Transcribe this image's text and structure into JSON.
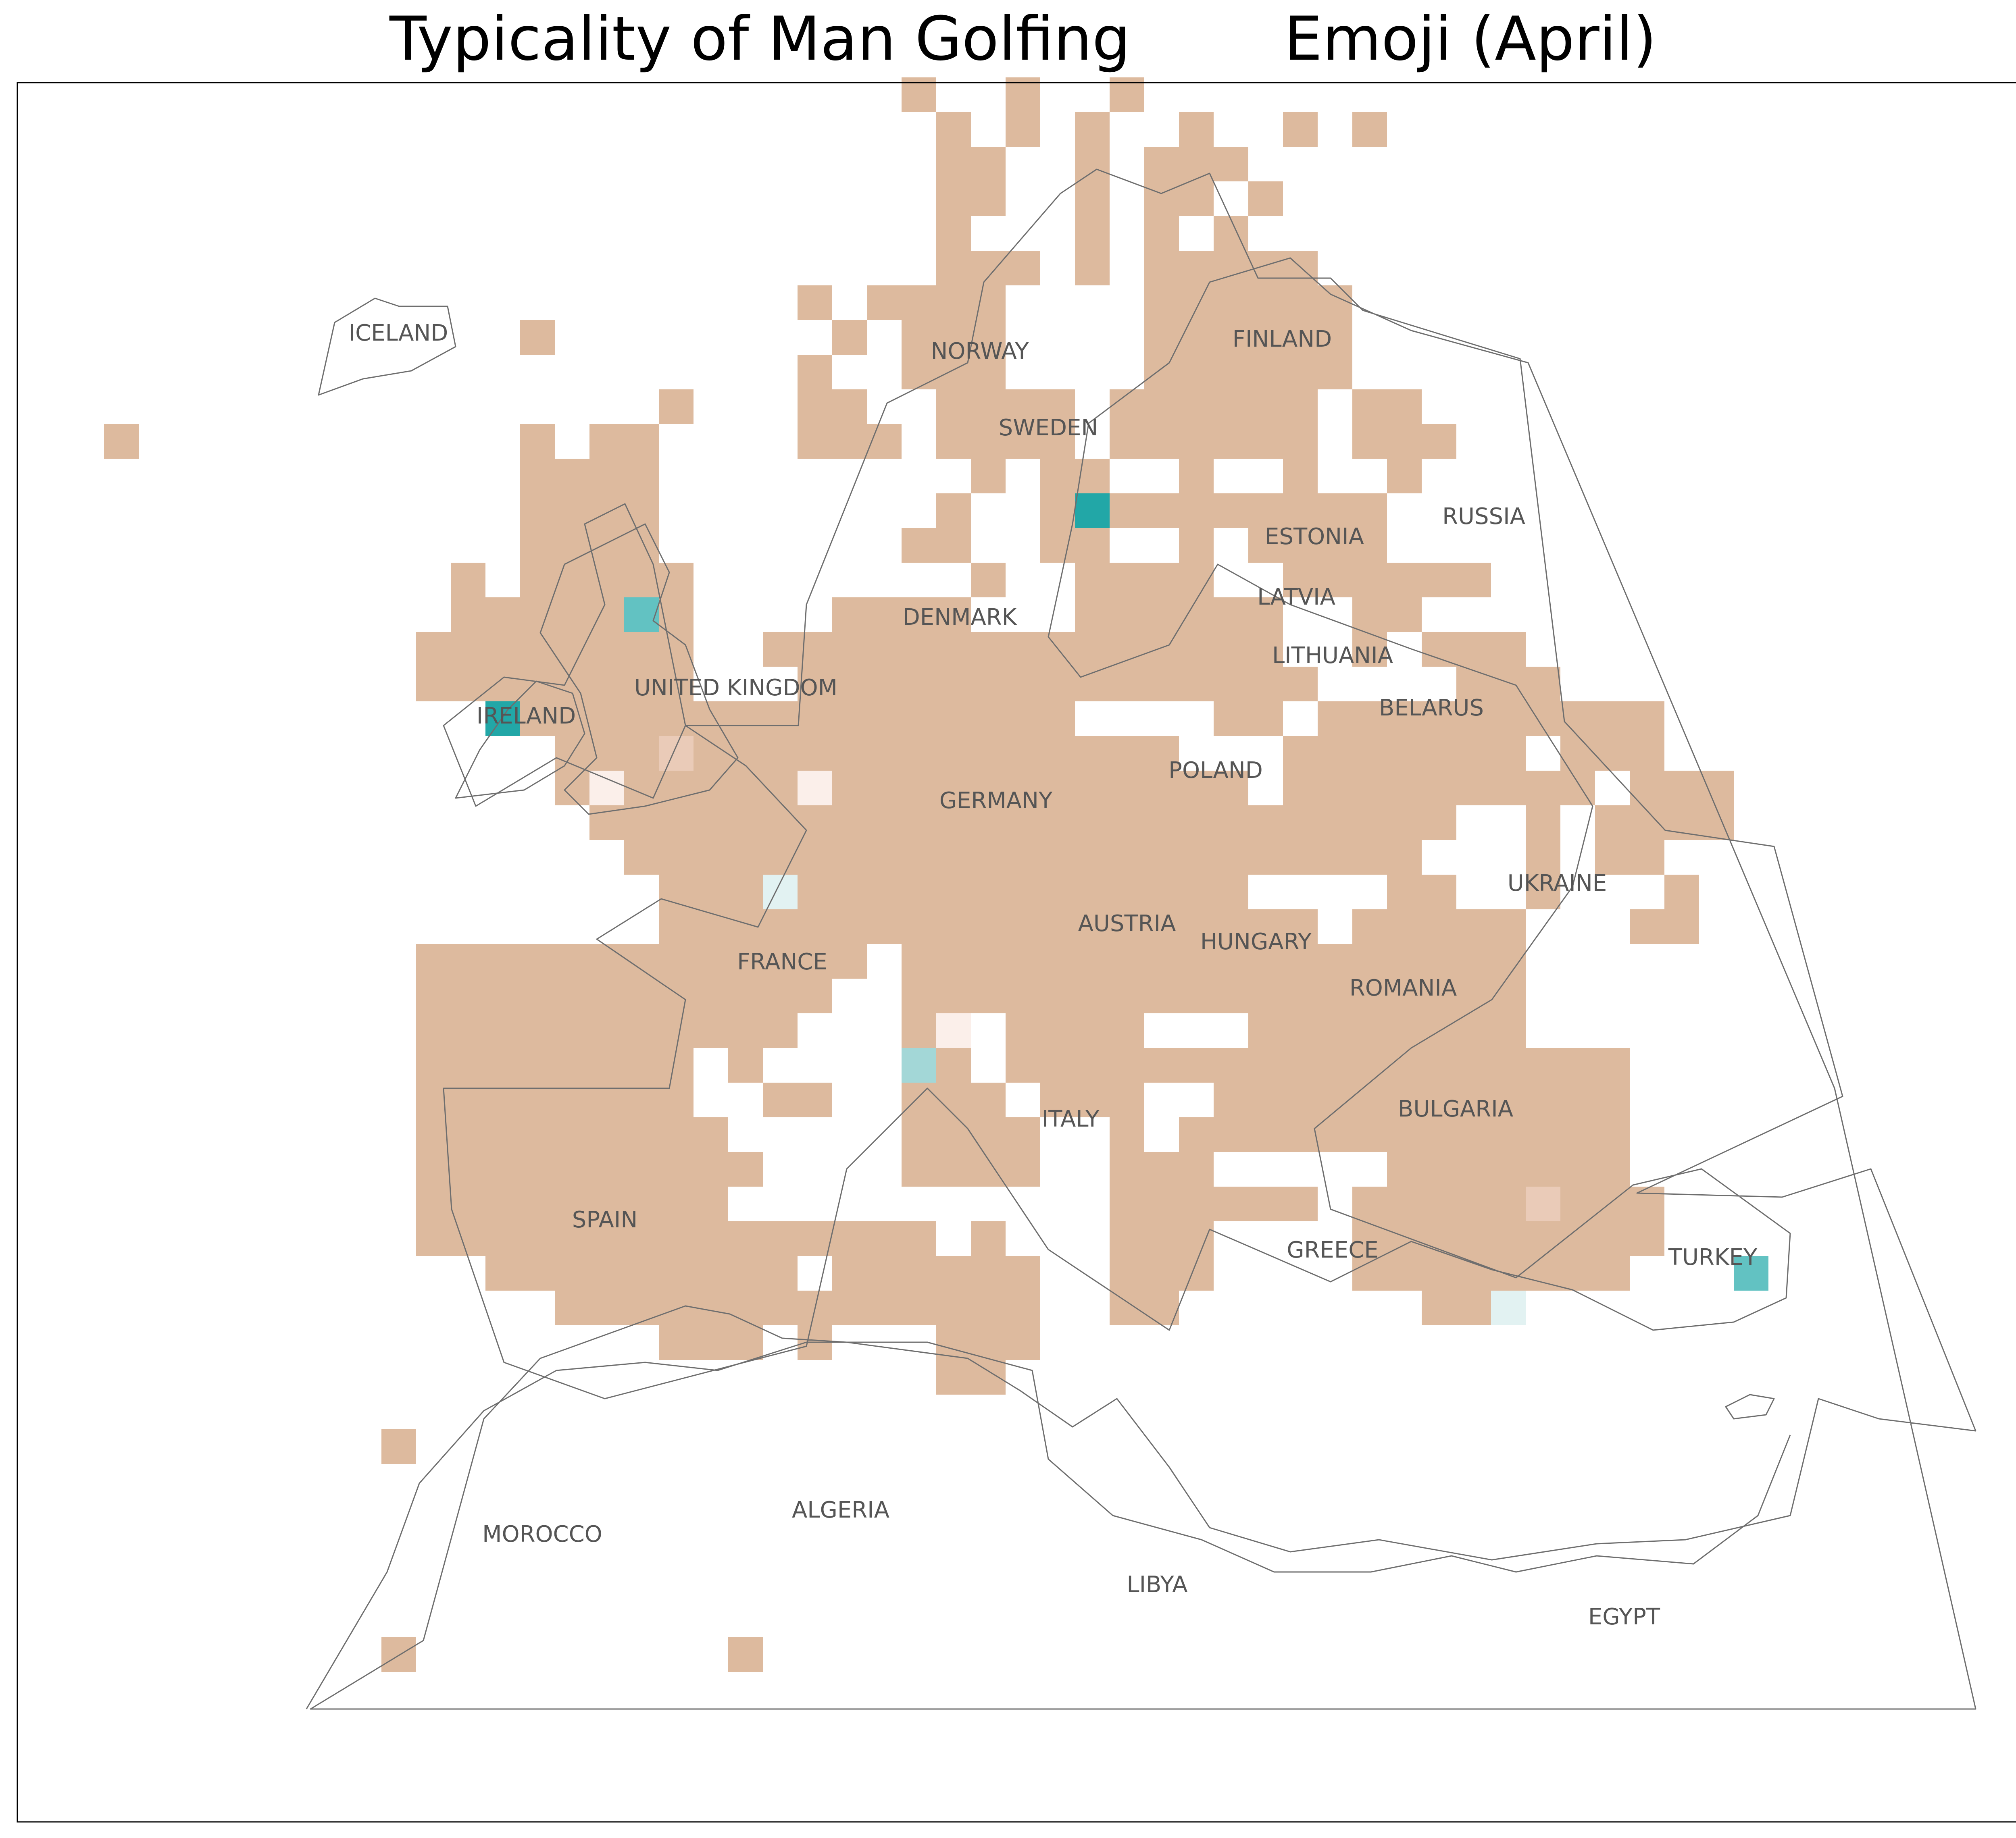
{
  "title": {
    "part1": "Typicality of Man Golfing",
    "part2": "Emoji (April)"
  },
  "colors": {
    "default_cell": "#ddba9e",
    "cell_palette": {
      "teal_dark": "#22a7a7",
      "teal_mid": "#62c2c2",
      "teal_light": "#a3d7d7",
      "teal_pale": "#e2f2f2",
      "rose_pale": "#fbefea",
      "peach_light": "#eacbb8"
    },
    "coastline": "#6e6e6e",
    "label": "#555555",
    "frame": "#000000"
  },
  "country_labels": [
    "ICELAND",
    "NORWAY",
    "FINLAND",
    "SWEDEN",
    "RUSSIA",
    "ESTONIA",
    "LATVIA",
    "DENMARK",
    "LITHUANIA",
    "UNITED KINGDOM",
    "IRELAND",
    "BELARUS",
    "POLAND",
    "GERMANY",
    "UKRAINE",
    "AUSTRIA",
    "HUNGARY",
    "FRANCE",
    "ROMANIA",
    "ITALY",
    "BULGARIA",
    "SPAIN",
    "GREECE",
    "TURKEY",
    "MOROCCO",
    "ALGERIA",
    "LIBYA",
    "EGYPT"
  ],
  "grid_rows": [
    [
      2,
      [
        [
          26,
          26
        ],
        [
          29,
          29
        ],
        [
          32,
          32
        ]
      ]
    ],
    [
      3,
      [
        [
          27,
          27
        ],
        [
          29,
          29
        ],
        [
          31,
          31
        ],
        [
          34,
          34
        ],
        [
          37,
          37
        ]
      ]
    ],
    [
      4,
      [
        [
          27,
          28
        ],
        [
          31,
          31
        ],
        [
          33,
          35
        ]
      ]
    ],
    [
      5,
      [
        [
          27,
          28
        ],
        [
          31,
          31
        ],
        [
          33,
          34
        ],
        [
          36,
          36
        ]
      ]
    ],
    [
      6,
      [
        [
          27,
          27
        ],
        [
          31,
          33
        ],
        [
          35,
          35
        ]
      ]
    ],
    [
      7,
      [
        [
          27,
          29
        ],
        [
          31,
          37
        ]
      ]
    ],
    [
      8,
      [
        [
          23,
          23
        ],
        [
          25,
          28
        ],
        [
          31,
          32
        ],
        [
          33,
          38
        ]
      ]
    ],
    [
      9,
      [
        [
          15,
          15
        ],
        [
          23,
          24
        ],
        [
          26,
          28
        ],
        [
          29,
          31
        ],
        [
          33,
          38
        ]
      ]
    ],
    [
      10,
      [
        [
          23,
          24
        ],
        [
          26,
          28
        ],
        [
          29,
          30
        ],
        [
          33,
          33
        ],
        [
          34,
          38
        ]
      ]
    ],
    [
      11,
      [
        [
          19,
          19
        ],
        [
          23,
          24
        ],
        [
          26,
          28
        ],
        [
          29,
          30
        ],
        [
          32,
          32
        ],
        [
          33,
          37
        ],
        [
          39,
          40
        ]
      ]
    ],
    [
      12,
      [
        [
          15,
          15
        ],
        [
          17,
          18
        ],
        [
          23,
          27
        ],
        [
          28,
          30
        ],
        [
          31,
          31
        ],
        [
          32,
          32
        ],
        [
          33,
          37
        ],
        [
          39,
          40
        ],
        [
          41,
          41
        ]
      ]
    ],
    [
      13,
      [
        [
          15,
          19
        ],
        [
          25,
          25
        ],
        [
          27,
          30
        ],
        [
          31,
          31
        ],
        [
          32,
          32
        ],
        [
          34,
          34
        ],
        [
          37,
          37
        ],
        [
          40,
          40
        ]
      ]
    ],
    [
      14,
      [
        [
          15,
          17
        ],
        [
          18,
          18
        ],
        [
          19,
          19
        ],
        [
          26,
          31
        ],
        [
          34,
          34
        ],
        [
          35,
          37
        ]
      ]
    ],
    [
      15,
      [
        [
          15,
          19
        ],
        [
          26,
          31
        ],
        [
          34,
          34
        ],
        [
          36,
          39
        ]
      ]
    ],
    [
      16,
      [
        [
          13,
          13
        ],
        [
          15,
          20
        ],
        [
          26,
          34
        ],
        [
          37,
          40
        ],
        [
          41,
          41
        ]
      ]
    ],
    [
      17,
      [
        [
          13,
          13
        ],
        [
          14,
          14
        ],
        [
          15,
          19
        ],
        [
          24,
          30
        ],
        [
          31,
          32
        ],
        [
          33,
          36
        ],
        [
          40,
          40
        ]
      ]
    ],
    [
      18,
      [
        [
          12,
          12
        ],
        [
          13,
          13
        ],
        [
          14,
          14
        ],
        [
          15,
          15
        ],
        [
          16,
          18
        ],
        [
          19,
          19
        ],
        [
          20,
          21
        ],
        [
          22,
          22
        ],
        [
          23,
          30
        ],
        [
          31,
          36
        ],
        [
          39,
          39
        ],
        [
          41,
          43
        ]
      ]
    ],
    [
      19,
      [
        [
          12,
          16
        ],
        [
          17,
          17
        ],
        [
          18,
          22
        ],
        [
          23,
          22
        ],
        [
          23,
          23
        ],
        [
          24,
          37
        ],
        [
          42,
          44
        ]
      ]
    ],
    [
      20,
      [
        [
          15,
          21
        ],
        [
          22,
          36
        ],
        [
          38,
          39
        ],
        [
          40,
          41
        ],
        [
          42,
          43
        ],
        [
          44,
          47
        ]
      ]
    ],
    [
      21,
      [
        [
          16,
          21
        ],
        [
          22,
          22
        ],
        [
          23,
          35
        ],
        [
          37,
          37
        ],
        [
          38,
          38
        ],
        [
          39,
          39
        ],
        [
          40,
          41
        ],
        [
          42,
          43
        ],
        [
          45,
          47
        ]
      ]
    ],
    [
      22,
      [
        [
          16,
          36
        ],
        [
          37,
          42
        ],
        [
          43,
          45
        ],
        [
          47,
          49
        ]
      ]
    ],
    [
      23,
      [
        [
          17,
          41
        ],
        [
          44,
          44
        ],
        [
          46,
          47
        ],
        [
          48,
          49
        ]
      ]
    ],
    [
      24,
      [
        [
          18,
          41
        ],
        [
          44,
          44
        ],
        [
          46,
          47
        ]
      ]
    ],
    [
      25,
      [
        [
          19,
          26
        ],
        [
          27,
          27
        ],
        [
          28,
          32
        ],
        [
          33,
          35
        ],
        [
          36,
          42
        ],
        [
          44,
          44
        ],
        [
          47,
          48
        ]
      ]
    ],
    [
      26,
      [
        [
          19,
          26
        ],
        [
          27,
          27
        ],
        [
          28,
          37
        ],
        [
          39,
          40
        ],
        [
          41,
          43
        ],
        [
          47,
          48
        ]
      ]
    ],
    [
      27,
      [
        [
          12,
          24
        ],
        [
          25,
          25
        ],
        [
          26,
          26
        ],
        [
          27,
          27
        ],
        [
          28,
          31
        ],
        [
          32,
          32
        ],
        [
          33,
          38
        ],
        [
          39,
          43
        ]
      ]
    ],
    [
      28,
      [
        [
          12,
          23
        ],
        [
          26,
          26
        ],
        [
          27,
          29
        ],
        [
          30,
          31
        ],
        [
          32,
          32
        ],
        [
          33,
          43
        ]
      ]
    ],
    [
      29,
      [
        [
          12,
          22
        ],
        [
          26,
          27
        ],
        [
          29,
          29
        ],
        [
          30,
          34
        ],
        [
          35,
          35
        ],
        [
          36,
          42
        ],
        [
          43,
          43
        ]
      ]
    ],
    [
      30,
      [
        [
          12,
          21
        ],
        [
          26,
          27
        ],
        [
          29,
          34
        ],
        [
          35,
          35
        ],
        [
          36,
          39
        ],
        [
          40,
          40
        ],
        [
          41,
          43
        ],
        [
          44,
          46
        ]
      ]
    ],
    [
      31,
      [
        [
          12,
          20
        ],
        [
          21,
          21
        ],
        [
          22,
          23
        ],
        [
          26,
          28
        ],
        [
          30,
          32
        ],
        [
          33,
          35
        ],
        [
          36,
          36
        ],
        [
          37,
          42
        ],
        [
          43,
          43
        ],
        [
          44,
          46
        ]
      ]
    ],
    [
      32,
      [
        [
          12,
          20
        ],
        [
          26,
          29
        ],
        [
          32,
          32
        ],
        [
          33,
          36
        ],
        [
          37,
          37
        ],
        [
          38,
          43
        ],
        [
          44,
          46
        ]
      ]
    ],
    [
      33,
      [
        [
          12,
          21
        ],
        [
          26,
          29
        ],
        [
          32,
          33
        ],
        [
          34,
          37
        ],
        [
          38,
          40
        ],
        [
          41,
          43
        ],
        [
          44,
          46
        ]
      ]
    ],
    [
      34,
      [
        [
          12,
          20
        ],
        [
          32,
          37
        ],
        [
          39,
          43
        ],
        [
          44,
          47
        ]
      ]
    ],
    [
      35,
      [
        [
          12,
          14
        ],
        [
          15,
          15
        ],
        [
          16,
          17
        ],
        [
          18,
          26
        ],
        [
          28,
          28
        ],
        [
          32,
          34
        ],
        [
          39,
          45
        ],
        [
          46,
          47
        ]
      ]
    ],
    [
      36,
      [
        [
          14,
          19
        ],
        [
          20,
          22
        ],
        [
          24,
          25
        ],
        [
          26,
          27
        ],
        [
          28,
          29
        ],
        [
          32,
          34
        ],
        [
          39,
          46
        ]
      ]
    ],
    [
      37,
      [
        [
          16,
          20
        ],
        [
          21,
          23
        ],
        [
          24,
          25
        ],
        [
          26,
          27
        ],
        [
          28,
          29
        ],
        [
          32,
          32
        ],
        [
          33,
          33
        ],
        [
          41,
          41
        ],
        [
          42,
          42
        ]
      ]
    ],
    [
      38,
      [
        [
          19,
          21
        ],
        [
          23,
          23
        ],
        [
          27,
          27
        ],
        [
          28,
          29
        ]
      ]
    ],
    [
      39,
      [
        [
          27,
          27
        ],
        [
          28,
          28
        ]
      ]
    ],
    [
      41,
      [
        [
          11,
          11
        ]
      ]
    ],
    [
      47,
      [
        [
          11,
          11
        ],
        [
          21,
          21
        ]
      ]
    ]
  ],
  "extra_cells": [
    [
      3,
      39,
      "default_cell"
    ],
    [
      12,
      3,
      "default_cell"
    ],
    [
      13,
      30,
      "default_cell"
    ],
    [
      14,
      32,
      "default_cell"
    ],
    [
      14,
      33,
      "default_cell"
    ],
    [
      14,
      37,
      "default_cell"
    ],
    [
      14,
      38,
      "default_cell"
    ],
    [
      14,
      39,
      "default_cell"
    ],
    [
      16,
      41,
      "default_cell"
    ],
    [
      16,
      42,
      "default_cell"
    ],
    [
      18,
      39,
      "default_cell"
    ],
    [
      17,
      39,
      "default_cell"
    ],
    [
      21,
      40,
      "default_cell"
    ],
    [
      14,
      31,
      "teal_dark"
    ],
    [
      17,
      18,
      "teal_mid"
    ],
    [
      20,
      14,
      "teal_dark"
    ],
    [
      21,
      19,
      "peach_light"
    ],
    [
      22,
      17,
      "rose_pale"
    ],
    [
      22,
      23,
      "rose_pale"
    ],
    [
      25,
      22,
      "teal_pale"
    ],
    [
      29,
      27,
      "rose_pale"
    ],
    [
      30,
      26,
      "teal_light"
    ],
    [
      34,
      44,
      "peach_light"
    ],
    [
      36,
      50,
      "teal_mid"
    ],
    [
      37,
      43,
      "teal_pale"
    ]
  ],
  "grid_cutouts": [
    [
      9,
      23
    ],
    [
      14,
      25
    ],
    [
      16,
      26
    ],
    [
      16,
      27
    ],
    [
      17,
      28
    ],
    [
      13,
      27
    ],
    [
      20,
      31
    ],
    [
      20,
      32
    ],
    [
      20,
      33
    ],
    [
      20,
      34
    ],
    [
      21,
      34
    ],
    [
      21,
      35
    ],
    [
      21,
      36
    ],
    [
      22,
      36
    ],
    [
      25,
      36
    ],
    [
      25,
      37
    ],
    [
      25,
      38
    ],
    [
      25,
      39
    ],
    [
      29,
      33
    ],
    [
      29,
      34
    ],
    [
      29,
      35
    ],
    [
      25,
      45
    ],
    [
      25,
      46
    ],
    [
      25,
      47
    ],
    [
      25,
      43
    ],
    [
      25,
      42
    ],
    [
      24,
      41
    ],
    [
      31,
      34
    ],
    [
      31,
      33
    ],
    [
      32,
      33
    ],
    [
      33,
      35
    ],
    [
      33,
      36
    ],
    [
      33,
      37
    ],
    [
      33,
      31
    ],
    [
      33,
      30
    ],
    [
      34,
      31
    ],
    [
      34,
      30
    ],
    [
      34,
      29
    ],
    [
      35,
      30
    ],
    [
      35,
      31
    ],
    [
      33,
      38
    ],
    [
      33,
      39
    ],
    [
      34,
      38
    ],
    [
      35,
      38
    ],
    [
      35,
      37
    ],
    [
      35,
      36
    ],
    [
      27,
      25
    ],
    [
      28,
      24
    ],
    [
      28,
      25
    ],
    [
      29,
      23
    ],
    [
      29,
      24
    ],
    [
      29,
      25
    ],
    [
      30,
      22
    ],
    [
      30,
      23
    ],
    [
      31,
      21
    ],
    [
      32,
      21
    ],
    [
      32,
      22
    ],
    [
      33,
      22
    ],
    [
      31,
      20
    ],
    [
      30,
      20
    ],
    [
      19,
      20
    ],
    [
      18,
      21
    ],
    [
      19,
      21
    ],
    [
      19,
      22
    ],
    [
      18,
      20
    ],
    [
      17,
      20
    ],
    [
      16,
      20
    ],
    [
      15,
      19
    ],
    [
      14,
      19
    ],
    [
      13,
      19
    ],
    [
      12,
      19
    ],
    [
      11,
      25
    ],
    [
      11,
      26
    ],
    [
      12,
      26
    ],
    [
      10,
      25
    ],
    [
      10,
      24
    ],
    [
      13,
      25
    ],
    [
      14,
      26
    ],
    [
      14,
      28
    ],
    [
      15,
      28
    ],
    [
      15,
      29
    ],
    [
      14,
      29
    ],
    [
      13,
      29
    ],
    [
      16,
      29
    ],
    [
      16,
      30
    ],
    [
      17,
      29
    ],
    [
      17,
      30
    ],
    [
      11,
      31
    ],
    [
      12,
      31
    ],
    [
      13,
      32
    ],
    [
      10,
      32
    ],
    [
      9,
      32
    ],
    [
      8,
      32
    ],
    [
      7,
      30
    ],
    [
      6,
      30
    ],
    [
      6,
      29
    ],
    [
      5,
      29
    ],
    [
      5,
      30
    ],
    [
      9,
      31
    ],
    [
      8,
      31
    ],
    [
      7,
      32
    ],
    [
      6,
      32
    ],
    [
      5,
      32
    ],
    [
      4,
      32
    ],
    [
      3,
      32
    ],
    [
      3,
      33
    ],
    [
      8,
      29
    ],
    [
      8,
      30
    ],
    [
      9,
      29
    ],
    [
      9,
      30
    ],
    [
      10,
      29
    ],
    [
      10,
      30
    ],
    [
      10,
      31
    ]
  ]
}
